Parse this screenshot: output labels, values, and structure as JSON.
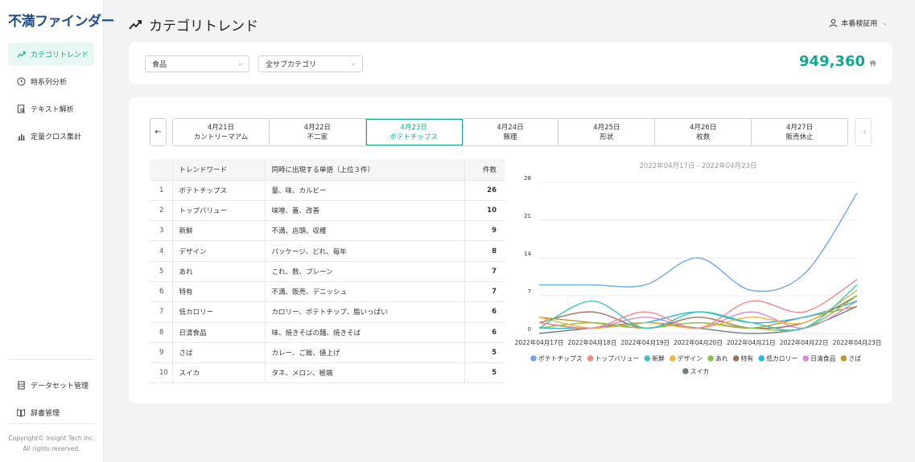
{
  "app": {
    "logo": "不満ファインダー"
  },
  "sidebar": {
    "items": [
      {
        "label": "カテゴリトレンド",
        "icon": "trend-icon",
        "active": true
      },
      {
        "label": "時系列分析",
        "icon": "clock-icon",
        "active": false
      },
      {
        "label": "テキスト解析",
        "icon": "document-search-icon",
        "active": false
      },
      {
        "label": "定量クロス集計",
        "icon": "bar-chart-icon",
        "active": false
      }
    ],
    "bottom_items": [
      {
        "label": "データセット管理",
        "icon": "dataset-icon"
      },
      {
        "label": "辞書管理",
        "icon": "book-icon"
      }
    ],
    "copyright_line1": "Copyright© Insight Tech Inc.",
    "copyright_line2": "All rights reserved."
  },
  "header": {
    "title": "カテゴリトレンド",
    "user": "本番検証用"
  },
  "filters": {
    "category": "食品",
    "subcategory": "全サブカテゴリ",
    "count": "949,360",
    "count_unit": "件"
  },
  "date_tabs": [
    {
      "date": "4月21日",
      "word": "カントリーマアム",
      "active": false
    },
    {
      "date": "4月22日",
      "word": "不二家",
      "active": false
    },
    {
      "date": "4月23日",
      "word": "ポテトチップス",
      "active": true
    },
    {
      "date": "4月24日",
      "word": "無理",
      "active": false
    },
    {
      "date": "4月25日",
      "word": "形状",
      "active": false
    },
    {
      "date": "4月26日",
      "word": "枚数",
      "active": false
    },
    {
      "date": "4月27日",
      "word": "販売休止",
      "active": false
    }
  ],
  "table": {
    "headers": [
      "",
      "トレンドワード",
      "同時に出現する単語（上位３件）",
      "件数"
    ],
    "rows": [
      {
        "idx": "1",
        "word": "ポテトチップス",
        "co": "量、味、カルビー",
        "count": "26"
      },
      {
        "idx": "2",
        "word": "トップバリュー",
        "co": "味噌、蓋、改善",
        "count": "10"
      },
      {
        "idx": "3",
        "word": "新鮮",
        "co": "不満、店頭、収穫",
        "count": "9"
      },
      {
        "idx": "4",
        "word": "デザイン",
        "co": "パッケージ、どれ、毎年",
        "count": "8"
      },
      {
        "idx": "5",
        "word": "あれ",
        "co": "これ、数、プレーン",
        "count": "7"
      },
      {
        "idx": "6",
        "word": "特有",
        "co": "不満、販売、デニッシュ",
        "count": "7"
      },
      {
        "idx": "7",
        "word": "低カロリー",
        "co": "カロリー、ポテトチップ、脂いっぱい",
        "count": "6"
      },
      {
        "idx": "8",
        "word": "日清食品",
        "co": "味、焼きそばの麺、焼きそば",
        "count": "6"
      },
      {
        "idx": "9",
        "word": "さば",
        "co": "カレー、ご飯、値上げ",
        "count": "5"
      },
      {
        "idx": "10",
        "word": "スイカ",
        "co": "タネ、メロン、極端",
        "count": "5"
      }
    ]
  },
  "chart_data": {
    "type": "line",
    "title": "2022年04月17日 - 2022年04月23日",
    "x": [
      "2022年04月17日",
      "2022年04月18日",
      "2022年04月19日",
      "2022年04月20日",
      "2022年04月21日",
      "2022年04月22日",
      "2022年04月23日"
    ],
    "ylim": [
      0,
      28
    ],
    "yticks": [
      0,
      7,
      14,
      21,
      28
    ],
    "grid": true,
    "legend_position": "bottom",
    "series": [
      {
        "name": "ポテトチップス",
        "color": "#6fa8e8",
        "values": [
          9,
          9,
          9,
          14,
          8,
          11,
          26
        ]
      },
      {
        "name": "トップバリュー",
        "color": "#f08a84",
        "values": [
          2,
          1,
          4,
          1,
          6,
          4,
          10
        ]
      },
      {
        "name": "新鮮",
        "color": "#3cc6b8",
        "values": [
          1,
          6,
          1,
          4,
          2,
          1,
          9
        ]
      },
      {
        "name": "デザイン",
        "color": "#f5b13c",
        "values": [
          3,
          1,
          2,
          1,
          3,
          2,
          8
        ]
      },
      {
        "name": "あれ",
        "color": "#8bc34a",
        "values": [
          1,
          2,
          1,
          2,
          1,
          1,
          7
        ]
      },
      {
        "name": "特有",
        "color": "#a0705a",
        "values": [
          2,
          4,
          1,
          3,
          1,
          2,
          7
        ]
      },
      {
        "name": "低カロリー",
        "color": "#29b6d8",
        "values": [
          1,
          1,
          2,
          4,
          2,
          3,
          6
        ]
      },
      {
        "name": "日清食品",
        "color": "#d48bd8",
        "values": [
          2,
          1,
          3,
          1,
          4,
          1,
          6
        ]
      },
      {
        "name": "さば",
        "color": "#b79a2a",
        "values": [
          3,
          2,
          1,
          2,
          1,
          3,
          5
        ]
      },
      {
        "name": "スイカ",
        "color": "#6e7f80",
        "values": [
          0,
          1,
          2,
          1,
          0,
          1,
          5
        ]
      }
    ]
  }
}
